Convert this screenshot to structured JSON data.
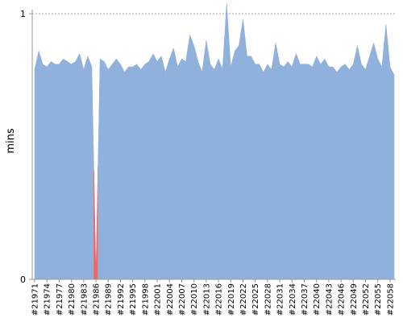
{
  "chart_data": {
    "type": "area",
    "y_label": "mins",
    "ylim": [
      0,
      1
    ],
    "yticks": [
      0,
      1
    ],
    "grid": true,
    "color": "#8fb1dc",
    "failed_color": "#e8686a",
    "failed": [
      15
    ],
    "categories": [
      "#21971",
      null,
      null,
      "#21974",
      null,
      null,
      "#21977",
      null,
      null,
      "#21980",
      null,
      null,
      "#21983",
      null,
      null,
      "#21986",
      null,
      null,
      "#21989",
      null,
      null,
      "#21992",
      null,
      null,
      "#21995",
      null,
      null,
      "#21998",
      null,
      null,
      "#22001",
      null,
      null,
      "#22004",
      null,
      null,
      "#22007",
      null,
      null,
      "#22010",
      null,
      null,
      "#22013",
      null,
      null,
      "#22016",
      null,
      null,
      "#22019",
      null,
      null,
      "#22022",
      null,
      null,
      "#22025",
      null,
      null,
      "#22028",
      null,
      null,
      "#22031",
      null,
      null,
      "#22034",
      null,
      null,
      "#22037",
      null,
      null,
      "#22040",
      null,
      null,
      "#22043",
      null,
      null,
      "#22046",
      null,
      null,
      "#22049",
      null,
      null,
      "#22052",
      null,
      null,
      "#22055",
      null,
      null,
      "#22058",
      null
    ],
    "values": [
      0.79,
      0.86,
      0.81,
      0.8,
      0.82,
      0.81,
      0.81,
      0.83,
      0.82,
      0.81,
      0.82,
      0.85,
      0.79,
      0.84,
      0.8,
      0.02,
      0.83,
      0.82,
      0.79,
      0.81,
      0.83,
      0.81,
      0.78,
      0.8,
      0.8,
      0.81,
      0.79,
      0.81,
      0.82,
      0.85,
      0.82,
      0.84,
      0.78,
      0.83,
      0.87,
      0.8,
      0.83,
      0.82,
      0.92,
      0.88,
      0.82,
      0.78,
      0.9,
      0.81,
      0.79,
      0.83,
      0.79,
      1.04,
      0.8,
      0.86,
      0.88,
      0.98,
      0.84,
      0.84,
      0.81,
      0.81,
      0.78,
      0.81,
      0.79,
      0.89,
      0.81,
      0.8,
      0.82,
      0.8,
      0.85,
      0.81,
      0.81,
      0.81,
      0.8,
      0.84,
      0.81,
      0.83,
      0.8,
      0.8,
      0.78,
      0.8,
      0.81,
      0.79,
      0.81,
      0.88,
      0.81,
      0.79,
      0.84,
      0.89,
      0.83,
      0.8,
      0.96,
      0.8,
      0.77
    ]
  }
}
